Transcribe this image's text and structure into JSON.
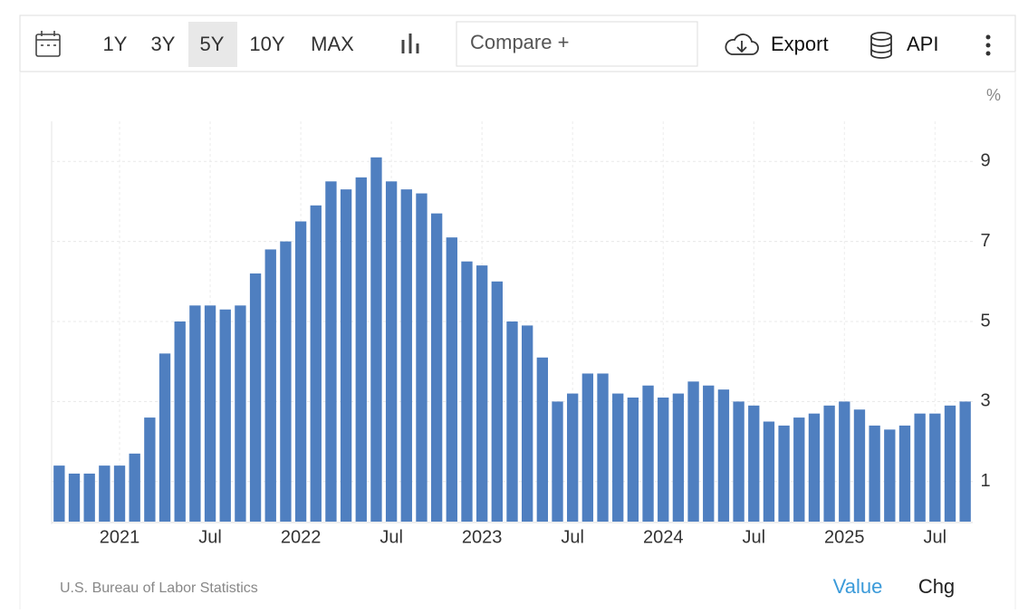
{
  "toolbar": {
    "ranges": [
      "1Y",
      "3Y",
      "5Y",
      "10Y",
      "MAX"
    ],
    "compare": "Compare +",
    "export": "Export",
    "api": "API"
  },
  "chart_data": {
    "type": "bar",
    "y_label": "%",
    "categories": [
      null,
      null,
      null,
      null,
      "2021",
      null,
      null,
      null,
      null,
      null,
      "Jul",
      null,
      null,
      null,
      null,
      null,
      "2022",
      null,
      null,
      null,
      null,
      null,
      "Jul",
      null,
      null,
      null,
      null,
      null,
      "2023",
      null,
      null,
      null,
      null,
      null,
      "Jul",
      null,
      null,
      null,
      null,
      null,
      "2024",
      null,
      null,
      null,
      null,
      null,
      "Jul",
      null,
      null,
      null,
      null,
      null,
      "2025",
      null,
      null,
      null,
      null,
      null,
      "Jul",
      null,
      null
    ],
    "values": [
      1.4,
      1.2,
      1.2,
      1.4,
      1.4,
      1.7,
      2.6,
      4.2,
      5.0,
      5.4,
      5.4,
      5.3,
      5.4,
      6.2,
      6.8,
      7.0,
      7.5,
      7.9,
      8.5,
      8.3,
      8.6,
      9.1,
      8.5,
      8.3,
      8.2,
      7.7,
      7.1,
      6.5,
      6.4,
      6.0,
      5.0,
      4.9,
      4.1,
      3.0,
      3.2,
      3.7,
      3.7,
      3.2,
      3.1,
      3.4,
      3.1,
      3.2,
      3.5,
      3.4,
      3.3,
      3.0,
      2.9,
      2.5,
      2.4,
      2.6,
      2.7,
      2.9,
      3.0,
      2.8,
      2.4,
      2.3,
      2.4,
      2.7,
      2.7,
      2.9,
      3.0
    ],
    "color": "#4f7fc0",
    "ylim": [
      0,
      10
    ],
    "yticks": [
      1,
      3,
      5,
      7,
      9
    ],
    "grid": true,
    "source": "U.S. Bureau of Labor Statistics"
  },
  "footer": {
    "value": "Value",
    "chg": "Chg"
  }
}
